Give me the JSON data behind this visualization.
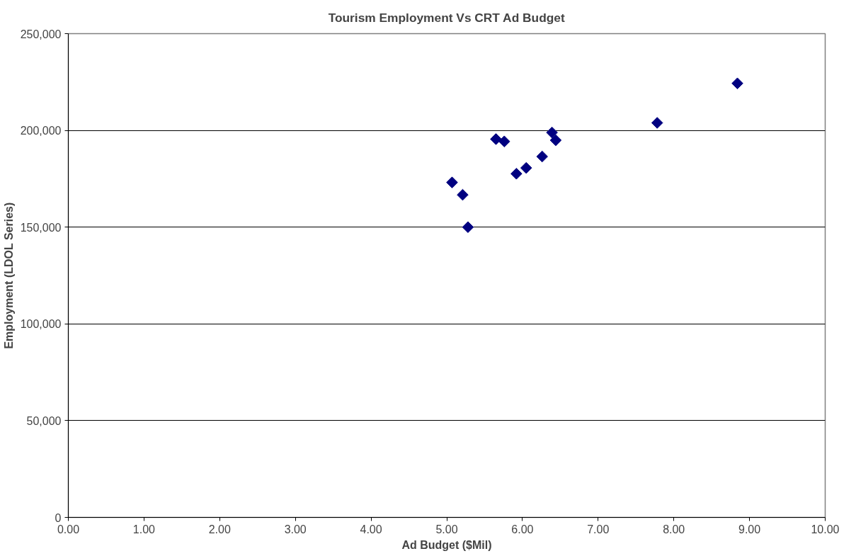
{
  "chart_data": {
    "type": "scatter",
    "title": "Tourism Employment Vs CRT Ad Budget",
    "xlabel": "Ad Budget ($Mil)",
    "ylabel": "Employment (LDOL Series)",
    "x": [
      5.07,
      5.21,
      5.28,
      5.65,
      5.76,
      5.92,
      6.05,
      6.26,
      6.39,
      6.44,
      7.78,
      8.84
    ],
    "values": [
      173100,
      166700,
      150000,
      195500,
      194300,
      177600,
      180600,
      186500,
      198900,
      194900,
      203900,
      224300
    ],
    "color": "#000080",
    "marker": "diamond",
    "grid": "y",
    "xlim": [
      0,
      10
    ],
    "ylim": [
      0,
      250000
    ],
    "xticks": [
      {
        "value": 0,
        "label": "0.00"
      },
      {
        "value": 1,
        "label": "1.00"
      },
      {
        "value": 2,
        "label": "2.00"
      },
      {
        "value": 3,
        "label": "3.00"
      },
      {
        "value": 4,
        "label": "4.00"
      },
      {
        "value": 5,
        "label": "5.00"
      },
      {
        "value": 6,
        "label": "6.00"
      },
      {
        "value": 7,
        "label": "7.00"
      },
      {
        "value": 8,
        "label": "8.00"
      },
      {
        "value": 9,
        "label": "9.00"
      },
      {
        "value": 10,
        "label": "10.00"
      }
    ],
    "yticks": [
      0,
      {
        "value": 50000,
        "label": "50,000"
      },
      {
        "value": 100000,
        "label": "100,000"
      },
      {
        "value": 150000,
        "label": "150,000"
      },
      {
        "value": 200000,
        "label": "200,000"
      },
      {
        "value": 250000,
        "label": "250,000"
      }
    ]
  }
}
